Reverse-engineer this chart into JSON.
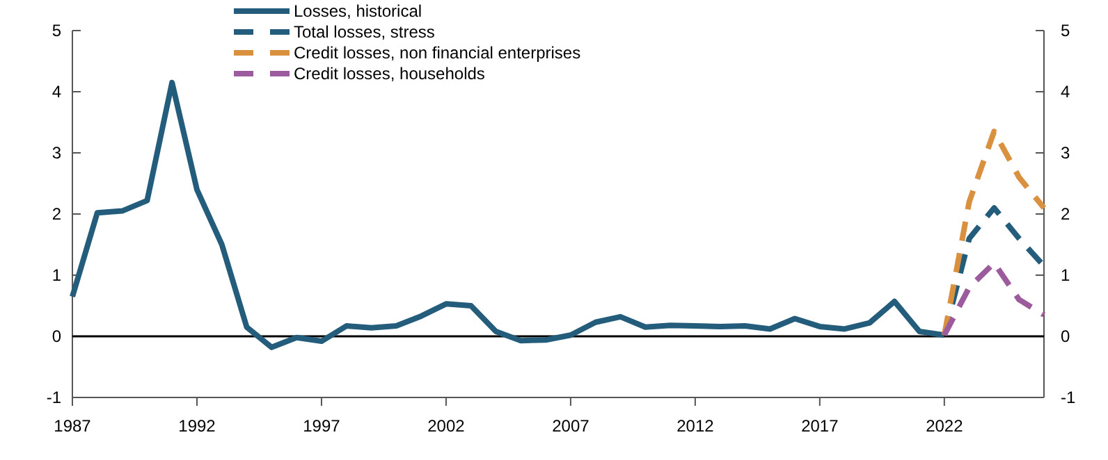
{
  "chart_data": {
    "type": "line",
    "xlim": [
      1987,
      2026
    ],
    "xticks": [
      1987,
      1992,
      1997,
      2002,
      2007,
      2012,
      2017,
      2022
    ],
    "ylim": [
      -1,
      5
    ],
    "yticks": [
      -1,
      0,
      1,
      2,
      3,
      4,
      5
    ],
    "y2lim": [
      -1,
      5
    ],
    "y2ticks": [
      -1,
      0,
      1,
      2,
      3,
      4,
      5
    ],
    "grid": false,
    "legend": "top",
    "marker": "none",
    "ref_lines": [
      {
        "axis": "y",
        "value": 0,
        "color": "#000000"
      }
    ],
    "series": [
      {
        "name": "Losses, historical",
        "color": "#245d7c",
        "line_style": "solid",
        "x": [
          1987,
          1988,
          1989,
          1990,
          1991,
          1992,
          1993,
          1994,
          1995,
          1996,
          1997,
          1998,
          1999,
          2000,
          2001,
          2002,
          2003,
          2004,
          2005,
          2006,
          2007,
          2008,
          2009,
          2010,
          2011,
          2012,
          2013,
          2014,
          2015,
          2016,
          2017,
          2018,
          2019,
          2020,
          2021,
          2022
        ],
        "values": [
          0.65,
          2.02,
          2.05,
          2.22,
          4.15,
          2.4,
          1.5,
          0.15,
          -0.18,
          -0.02,
          -0.08,
          0.17,
          0.14,
          0.17,
          0.33,
          0.53,
          0.5,
          0.08,
          -0.07,
          -0.06,
          0.02,
          0.23,
          0.32,
          0.15,
          0.18,
          0.17,
          0.16,
          0.17,
          0.12,
          0.29,
          0.16,
          0.12,
          0.22,
          0.57,
          0.08,
          0.02
        ]
      },
      {
        "name": "Total losses, stress",
        "color": "#245d7c",
        "line_style": "dashed",
        "x": [
          2022,
          2023,
          2024,
          2025,
          2026
        ],
        "values": [
          0.02,
          1.6,
          2.1,
          1.6,
          1.15
        ]
      },
      {
        "name": "Credit losses, non financial enterprises",
        "color": "#d99140",
        "line_style": "dashed",
        "x": [
          2022,
          2023,
          2024,
          2025,
          2026
        ],
        "values": [
          0.02,
          2.2,
          3.35,
          2.6,
          2.1
        ]
      },
      {
        "name": "Credit losses, households",
        "color": "#9b5b9c",
        "line_style": "dashed",
        "x": [
          2022,
          2023,
          2024,
          2025,
          2026
        ],
        "values": [
          0.02,
          0.8,
          1.2,
          0.6,
          0.35
        ]
      }
    ]
  }
}
